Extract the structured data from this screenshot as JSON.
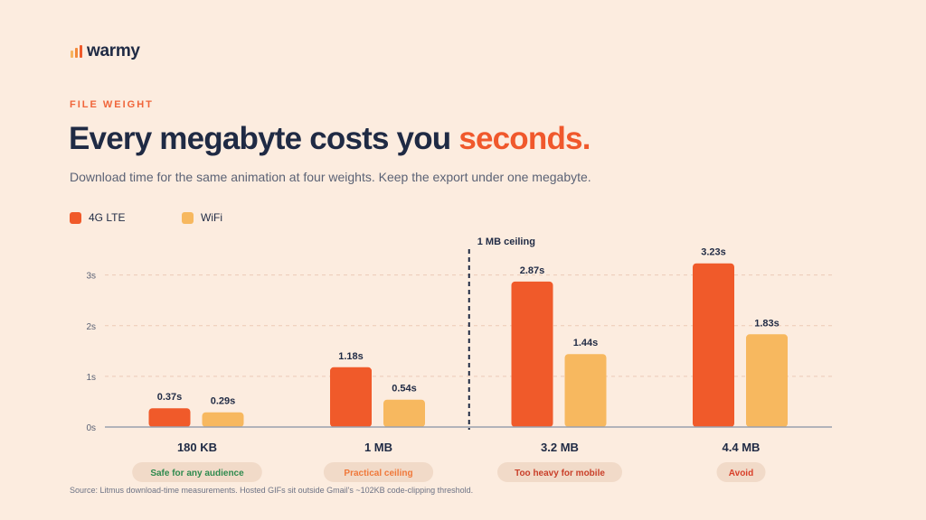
{
  "brand": {
    "name": "warmy"
  },
  "header": {
    "eyebrow": "FILE WEIGHT",
    "title_main": "Every megabyte costs you ",
    "title_accent": "seconds.",
    "subtitle": "Download time for the same animation at four weights. Keep the export under one megabyte."
  },
  "colors": {
    "lte": "#f05a2a",
    "wifi": "#f7b85f",
    "text": "#1f2a44",
    "accent": "#f0582c",
    "safe": "#2f8a4e",
    "practical": "#f0783a",
    "heavy": "#c9402a",
    "avoid": "#d8402a"
  },
  "chart_data": {
    "type": "bar",
    "categories": [
      "180 KB",
      "1 MB",
      "3.2 MB",
      "4.4 MB"
    ],
    "series": [
      {
        "name": "4G LTE",
        "values": [
          0.37,
          1.18,
          2.87,
          3.23
        ]
      },
      {
        "name": "WiFi",
        "values": [
          0.29,
          0.54,
          1.44,
          1.83
        ]
      }
    ],
    "value_labels": [
      [
        "0.37s",
        "1.18s",
        "2.87s",
        "3.23s"
      ],
      [
        "0.29s",
        "0.54s",
        "1.44s",
        "1.83s"
      ]
    ],
    "yticks": [
      0,
      1,
      2,
      3
    ],
    "ytick_labels": [
      "0s",
      "1s",
      "2s",
      "3s"
    ],
    "ylim": [
      0,
      3.35
    ],
    "grid": true,
    "legend": "top-left",
    "annotation": {
      "label": "1 MB ceiling",
      "between": [
        "1 MB",
        "3.2 MB"
      ]
    },
    "category_badges": [
      {
        "text": "Safe for any audience",
        "tone": "safe"
      },
      {
        "text": "Practical ceiling",
        "tone": "practical"
      },
      {
        "text": "Too heavy for mobile",
        "tone": "heavy"
      },
      {
        "text": "Avoid",
        "tone": "avoid"
      }
    ]
  },
  "footer": {
    "source": "Source: Litmus download-time measurements. Hosted GIFs sit outside Gmail's ~102KB code-clipping threshold."
  }
}
